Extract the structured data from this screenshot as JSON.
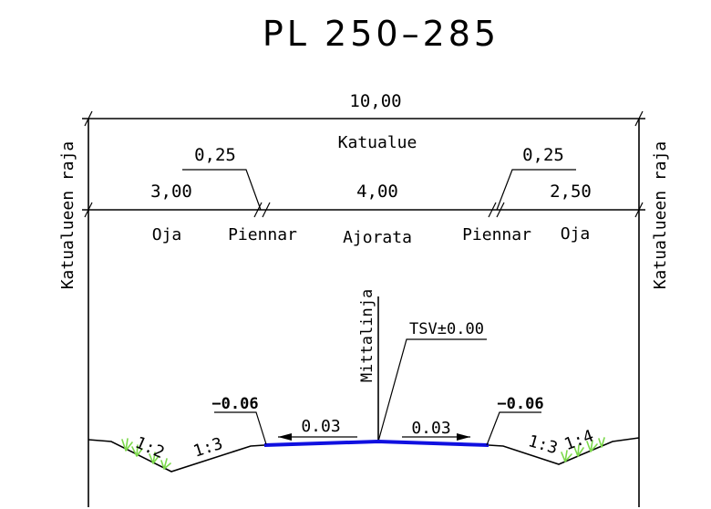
{
  "title": "PL 250–285",
  "dimensions": {
    "total_width": "10,00",
    "area_label": "Katualue",
    "left_shoulder_width": "0,25",
    "right_shoulder_width": "0,25",
    "left_ditch_width": "3,00",
    "carriageway_width": "4,00",
    "right_ditch_width": "2,50"
  },
  "zones": {
    "left_ditch": "Oja",
    "left_shoulder": "Piennar",
    "carriageway": "Ajorata",
    "right_shoulder": "Piennar",
    "right_ditch": "Oja"
  },
  "boundary_label": "Katualueen raja",
  "centerline_label": "Mittalinja",
  "elevation_ref": "TSV±0.00",
  "crossfall": {
    "left": "0.03",
    "right": "0.03"
  },
  "edge_elevations": {
    "left": "−0.06",
    "right": "−0.06"
  },
  "slopes": {
    "left_outer": "1:2",
    "left_inner": "1:3",
    "right_inner": "1:3",
    "right_outer": "1:4"
  },
  "colors": {
    "pavement": "#1010e0",
    "grass": "#7bd84a",
    "lines": "#000000"
  }
}
